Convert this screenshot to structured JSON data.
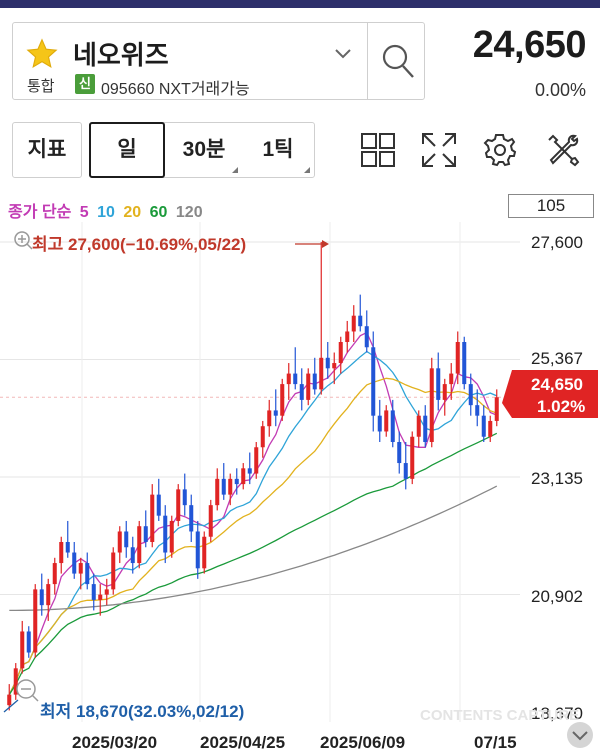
{
  "header": {
    "stock_name": "네오위즈",
    "market_tag": "통합",
    "new_badge": "신",
    "code_text": "095660 NXT거래가능",
    "price": "24,650",
    "change_rate": "0.00%",
    "colors": {
      "star": "#f5c518",
      "new_badge": "#4a9d3a"
    }
  },
  "toolbar": {
    "indicator_label": "지표",
    "periods": [
      {
        "label": "일",
        "selected": true
      },
      {
        "label": "30분",
        "selected": false
      },
      {
        "label": "1틱",
        "selected": false
      }
    ],
    "icons": [
      "grid-icon",
      "expand-icon",
      "settings-icon",
      "tools-icon"
    ]
  },
  "legend": {
    "prefix": "종가 단순",
    "ma": [
      {
        "period": "5",
        "color": "#c23bb4"
      },
      {
        "period": "10",
        "color": "#2fa4d8"
      },
      {
        "period": "20",
        "color": "#e2b21e"
      },
      {
        "period": "60",
        "color": "#1a9a3a"
      },
      {
        "period": "120",
        "color": "#888888"
      }
    ],
    "count": "105"
  },
  "chart_data": {
    "type": "candlestick",
    "y_ticks": [
      "27,600",
      "25,367",
      "23,135",
      "20,902",
      "18,670"
    ],
    "y_range": [
      18670,
      27600
    ],
    "x_ticks": [
      "2025/03/20",
      "2025/04/25",
      "2025/06/09",
      "07/15"
    ],
    "high_label": "최고 27,600(−10.69%,05/22)",
    "low_label": "최저 18,670(32.03%,02/12)",
    "current_price": "24,650",
    "current_change": "1.02%",
    "colors": {
      "up": "#e02424",
      "down": "#2155d6",
      "current_tag": "#e02424"
    },
    "candles": [
      [
        18800,
        19200,
        18700,
        19000
      ],
      [
        19000,
        19600,
        18900,
        19500
      ],
      [
        19500,
        20400,
        19400,
        20200
      ],
      [
        20200,
        20300,
        19700,
        19800
      ],
      [
        19800,
        21100,
        19700,
        21000
      ],
      [
        21000,
        21300,
        20500,
        20700
      ],
      [
        20700,
        21200,
        20400,
        21100
      ],
      [
        21100,
        21600,
        20900,
        21500
      ],
      [
        21500,
        22000,
        21300,
        21900
      ],
      [
        21900,
        22300,
        21600,
        21700
      ],
      [
        21700,
        21900,
        21200,
        21300
      ],
      [
        21300,
        21600,
        21000,
        21500
      ],
      [
        21500,
        21700,
        21000,
        21100
      ],
      [
        21100,
        21300,
        20600,
        20800
      ],
      [
        20800,
        21100,
        20500,
        20900
      ],
      [
        20900,
        21200,
        20700,
        21000
      ],
      [
        21000,
        21800,
        20900,
        21700
      ],
      [
        21700,
        22200,
        21500,
        22100
      ],
      [
        22100,
        22300,
        21600,
        21800
      ],
      [
        21800,
        22000,
        21300,
        21500
      ],
      [
        21500,
        22300,
        21400,
        22200
      ],
      [
        22200,
        22500,
        21800,
        21900
      ],
      [
        21900,
        23000,
        21800,
        22800
      ],
      [
        22800,
        23100,
        22300,
        22400
      ],
      [
        22400,
        22600,
        21500,
        21700
      ],
      [
        21700,
        22400,
        21600,
        22300
      ],
      [
        22300,
        23000,
        22200,
        22900
      ],
      [
        22900,
        23200,
        22400,
        22600
      ],
      [
        22600,
        22800,
        21900,
        22100
      ],
      [
        22100,
        22300,
        21200,
        21400
      ],
      [
        21400,
        22100,
        21300,
        22000
      ],
      [
        22000,
        22700,
        21900,
        22600
      ],
      [
        22600,
        23300,
        22500,
        23100
      ],
      [
        23100,
        23400,
        22700,
        22800
      ],
      [
        22800,
        23200,
        22600,
        23100
      ],
      [
        23100,
        23300,
        22800,
        23000
      ],
      [
        23000,
        23400,
        22900,
        23300
      ],
      [
        23300,
        23600,
        23000,
        23200
      ],
      [
        23200,
        23800,
        23100,
        23700
      ],
      [
        23700,
        24200,
        23500,
        24100
      ],
      [
        24100,
        24600,
        23900,
        24400
      ],
      [
        24400,
        24800,
        24100,
        24300
      ],
      [
        24300,
        25000,
        24200,
        24900
      ],
      [
        24900,
        25300,
        24600,
        25100
      ],
      [
        25100,
        25600,
        24800,
        24900
      ],
      [
        24900,
        25200,
        24400,
        24600
      ],
      [
        24600,
        25200,
        24500,
        25100
      ],
      [
        25100,
        25400,
        24700,
        24800
      ],
      [
        24800,
        27600,
        24700,
        25400
      ],
      [
        25400,
        25700,
        25000,
        25200
      ],
      [
        25200,
        25500,
        24900,
        25300
      ],
      [
        25300,
        25800,
        25100,
        25700
      ],
      [
        25700,
        26100,
        25500,
        25900
      ],
      [
        25900,
        26400,
        25700,
        26200
      ],
      [
        26200,
        26600,
        25900,
        26000
      ],
      [
        26000,
        26300,
        25500,
        25600
      ],
      [
        25600,
        25900,
        24000,
        24300
      ],
      [
        24300,
        24600,
        23800,
        24000
      ],
      [
        24000,
        24500,
        23900,
        24400
      ],
      [
        24400,
        24600,
        23700,
        23800
      ],
      [
        23800,
        24000,
        23200,
        23400
      ],
      [
        23400,
        23800,
        22900,
        23100
      ],
      [
        23100,
        24000,
        23000,
        23900
      ],
      [
        23900,
        24400,
        23700,
        24300
      ],
      [
        24300,
        24500,
        23700,
        23800
      ],
      [
        23800,
        25400,
        23700,
        25200
      ],
      [
        25200,
        25500,
        24400,
        24600
      ],
      [
        24600,
        25000,
        24300,
        24900
      ],
      [
        24900,
        25300,
        24600,
        25100
      ],
      [
        25100,
        25900,
        24900,
        25700
      ],
      [
        25700,
        25800,
        24800,
        24900
      ],
      [
        24900,
        25100,
        24300,
        24500
      ],
      [
        24500,
        24800,
        24100,
        24300
      ],
      [
        24300,
        24500,
        23800,
        23900
      ],
      [
        23900,
        24300,
        23800,
        24200
      ],
      [
        24200,
        24800,
        24100,
        24650
      ]
    ]
  },
  "watermark": "CONTENTS CAPTURE"
}
